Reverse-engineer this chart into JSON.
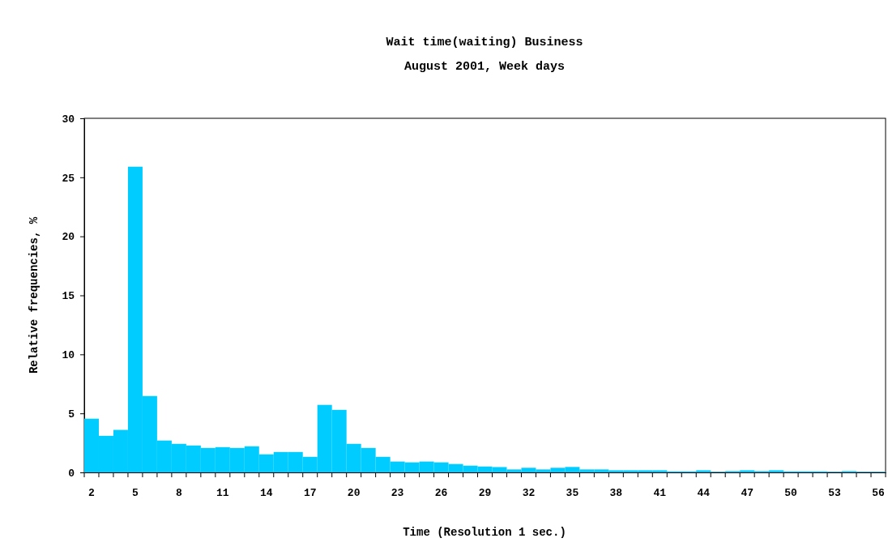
{
  "chart_data": {
    "type": "bar",
    "title": "Wait time(waiting) Business",
    "subtitle": "August 2001, Week days",
    "xlabel": "Time (Resolution 1 sec.)",
    "ylabel": "Relative frequencies, %",
    "categories": [
      "2",
      null,
      null,
      "5",
      null,
      null,
      "8",
      null,
      null,
      "11",
      null,
      null,
      "14",
      null,
      null,
      "17",
      null,
      null,
      "20",
      null,
      null,
      "23",
      null,
      null,
      "26",
      null,
      null,
      "29",
      null,
      null,
      "32",
      null,
      null,
      "35",
      null,
      null,
      "38",
      null,
      null,
      "41",
      null,
      null,
      "44",
      null,
      null,
      "47",
      null,
      null,
      "50",
      null,
      null,
      "53",
      null,
      null,
      "56"
    ],
    "values": [
      4.55,
      3.1,
      3.6,
      25.9,
      6.47,
      2.7,
      2.42,
      2.28,
      2.07,
      2.14,
      2.07,
      2.21,
      1.53,
      1.73,
      1.73,
      1.32,
      5.72,
      5.3,
      2.42,
      2.07,
      1.32,
      0.92,
      0.85,
      0.92,
      0.85,
      0.71,
      0.57,
      0.5,
      0.45,
      0.25,
      0.39,
      0.25,
      0.39,
      0.46,
      0.25,
      0.25,
      0.18,
      0.18,
      0.18,
      0.18,
      0.09,
      0.09,
      0.18,
      0.05,
      0.11,
      0.18,
      0.11,
      0.18,
      0.09,
      0.09,
      0.09,
      0.05,
      0.11,
      0.05,
      0.05
    ],
    "color": "#00ccff",
    "ylim": [
      0,
      30
    ],
    "yticks": [
      0,
      5,
      10,
      15,
      20,
      25,
      30
    ],
    "grid": false
  }
}
